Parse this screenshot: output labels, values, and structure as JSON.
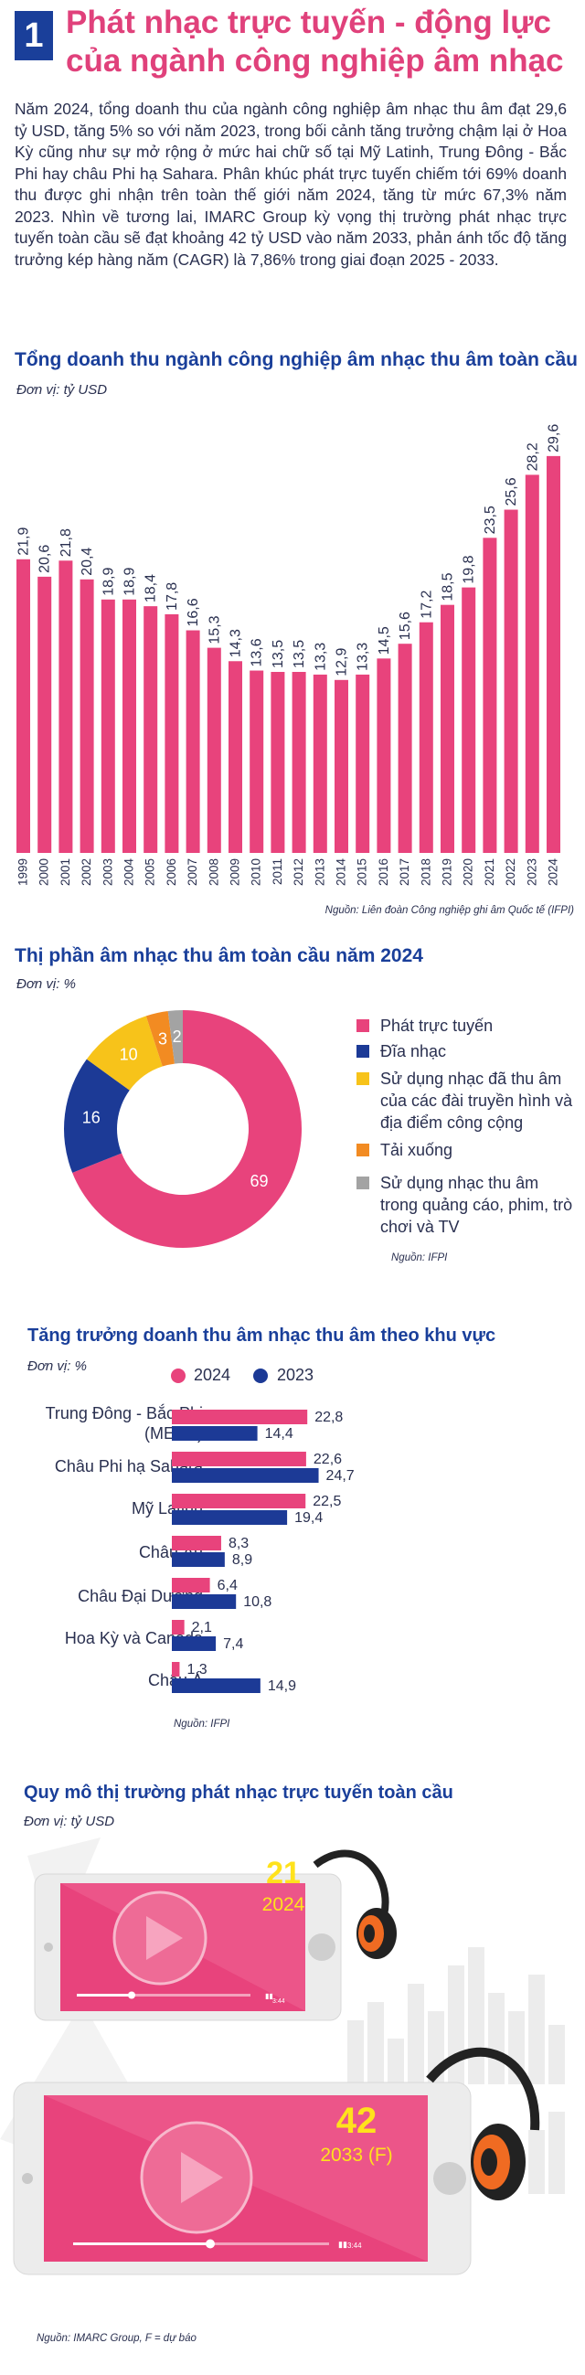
{
  "header": {
    "number": "1",
    "title": "Phát nhạc trực tuyến - động lực của ngành công nghiệp âm nhạc"
  },
  "intro": "Năm 2024, tổng doanh thu của ngành công nghiệp âm nhạc thu âm đạt 29,6 tỷ USD, tăng 5% so với năm 2023, trong bối cảnh tăng trưởng chậm lại ở Hoa Kỳ cũng như sự mở rộng ở mức hai chữ số tại Mỹ Latinh, Trung Đông - Bắc Phi hay châu Phi hạ Sahara. Phân khúc phát trực tuyến chiếm tới 69% doanh thu được ghi nhận trên toàn thế giới năm 2024, tăng từ mức 67,3% năm 2023. Nhìn về tương lai, IMARC Group kỳ vọng thị trường phát nhạc trực tuyến toàn cầu sẽ đạt khoảng 42 tỷ USD vào năm 2033, phản ánh tốc độ tăng trưởng kép hàng năm (CAGR) là 7,86% trong giai đoạn 2025 - 2033.",
  "colors": {
    "pink": "#e8437c",
    "navy": "#1c3a96",
    "yellow": "#f7c31a",
    "orange": "#f28b22",
    "gray": "#a3a3a3"
  },
  "chart_data": [
    {
      "type": "bar",
      "title": "Tổng doanh thu ngành công nghiệp âm nhạc thu âm toàn cầu",
      "unit": "Đơn vị: tỷ USD",
      "source": "Nguồn: Liên đoàn Công nghiệp ghi âm Quốc tế (IFPI)",
      "categories": [
        "1999",
        "2000",
        "2001",
        "2002",
        "2003",
        "2004",
        "2005",
        "2006",
        "2007",
        "2008",
        "2009",
        "2010",
        "2011",
        "2012",
        "2013",
        "2014",
        "2015",
        "2016",
        "2017",
        "2018",
        "2019",
        "2020",
        "2021",
        "2022",
        "2023",
        "2024"
      ],
      "values": [
        21.9,
        20.6,
        21.8,
        20.4,
        18.9,
        18.9,
        18.4,
        17.8,
        16.6,
        15.3,
        14.3,
        13.6,
        13.5,
        13.5,
        13.3,
        12.9,
        13.3,
        14.5,
        15.6,
        17.2,
        18.5,
        19.8,
        23.5,
        25.6,
        28.2,
        29.6
      ],
      "value_labels": [
        "21,9",
        "20,6",
        "21,8",
        "20,4",
        "18,9",
        "18,9",
        "18,4",
        "17,8",
        "16,6",
        "15,3",
        "14,3",
        "13,6",
        "13,5",
        "13,5",
        "13,3",
        "12,9",
        "13,3",
        "14,5",
        "15,6",
        "17,2",
        "18,5",
        "19,8",
        "23,5",
        "25,6",
        "28,2",
        "29,6"
      ],
      "ylim": [
        0,
        30
      ],
      "color": "#e8437c"
    },
    {
      "type": "pie",
      "title": "Thị phần âm nhạc thu âm toàn cầu năm 2024",
      "unit": "Đơn vị: %",
      "source": "Nguồn: IFPI",
      "slices": [
        {
          "label": "Phát trực tuyến",
          "value": 69,
          "color": "#e8437c"
        },
        {
          "label": "Đĩa nhạc",
          "value": 16,
          "color": "#1c3a96"
        },
        {
          "label": "Sử dụng nhạc đã thu âm của các đài truyền hình và địa điểm công cộng",
          "value": 10,
          "color": "#f7c31a"
        },
        {
          "label": "Tải xuống",
          "value": 3,
          "color": "#f28b22"
        },
        {
          "label": "Sử dụng nhạc thu âm trong quảng cáo, phim, trò chơi và TV",
          "value": 2,
          "color": "#a3a3a3"
        }
      ]
    },
    {
      "type": "bar",
      "orientation": "horizontal",
      "title": "Tăng trưởng doanh thu âm nhạc thu âm theo khu vực",
      "unit": "Đơn vị: %",
      "source": "Nguồn: IFPI",
      "legend": [
        "2024",
        "2023"
      ],
      "categories": [
        "Trung Đông - Bắc Phi (MENA)",
        "Châu Phi hạ Sahara",
        "Mỹ Latinh",
        "Châu Âu",
        "Châu Đại Dương",
        "Hoa Kỳ và Canada",
        "Châu Á"
      ],
      "category_lines": [
        [
          "Trung Đông - Bắc Phi",
          "(MENA)"
        ],
        [
          "Châu Phi hạ Sahara"
        ],
        [
          "Mỹ Latinh"
        ],
        [
          "Châu Âu"
        ],
        [
          "Châu Đại Dương"
        ],
        [
          "Hoa Kỳ và Canada"
        ],
        [
          "Châu Á"
        ]
      ],
      "series": [
        {
          "name": "2024",
          "color": "#e8437c",
          "values": [
            22.8,
            22.6,
            22.5,
            8.3,
            6.4,
            2.1,
            1.3
          ],
          "labels": [
            "22,8",
            "22,6",
            "22,5",
            "8,3",
            "6,4",
            "2,1",
            "1,3"
          ]
        },
        {
          "name": "2023",
          "color": "#1c3a96",
          "values": [
            14.4,
            24.7,
            19.4,
            8.9,
            10.8,
            7.4,
            14.9
          ],
          "labels": [
            "14,4",
            "24,7",
            "19,4",
            "8,9",
            "10,8",
            "7,4",
            "14,9"
          ]
        }
      ]
    },
    {
      "type": "table",
      "title": "Quy mô thị trường phát nhạc trực tuyến toàn cầu",
      "unit": "Đơn vị: tỷ USD",
      "source": "Nguồn: IMARC Group, F = dự báo",
      "rows": [
        {
          "year": "2024",
          "value": "21"
        },
        {
          "year": "2033 (F)",
          "value": "42"
        }
      ]
    }
  ],
  "player": {
    "time": "3:44"
  }
}
